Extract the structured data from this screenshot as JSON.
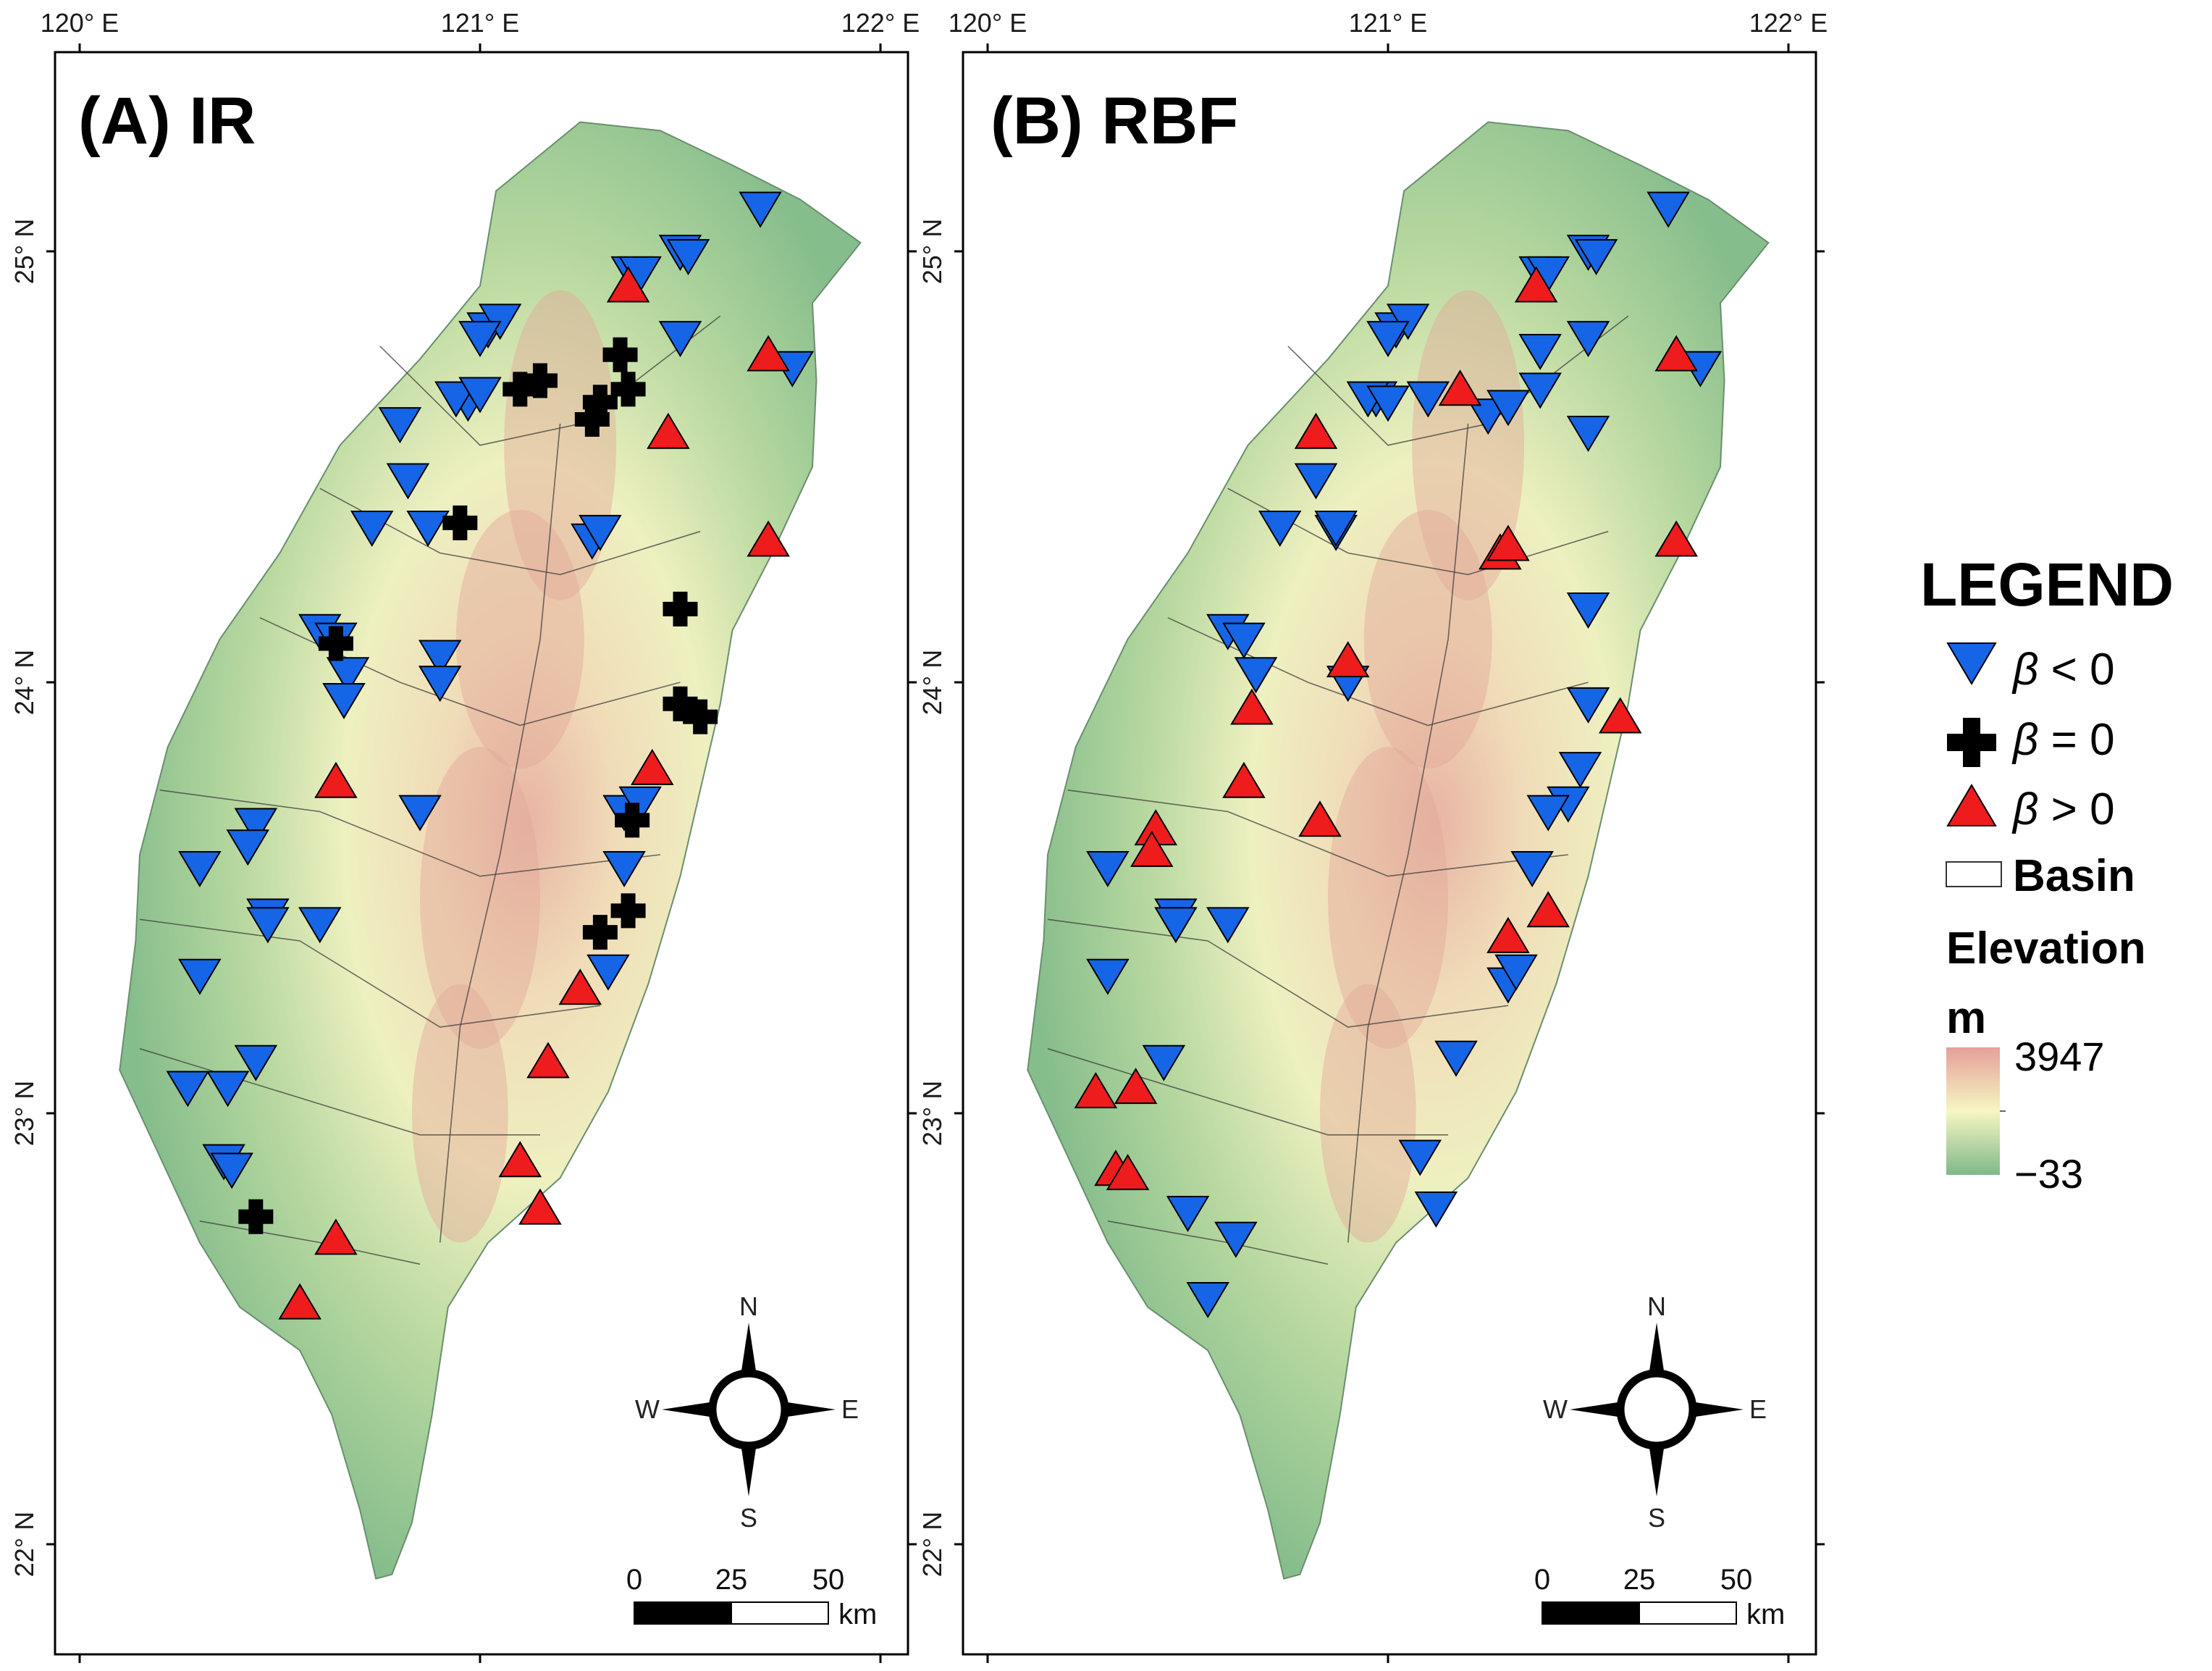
{
  "panels": [
    {
      "id": "A",
      "title": "(A) IR"
    },
    {
      "id": "B",
      "title": "(B) RBF"
    }
  ],
  "axes": {
    "x_ticks": [
      "120° E",
      "121° E",
      "122° E"
    ],
    "y_ticks": [
      "25° N",
      "24° N",
      "23° N",
      "22° N"
    ]
  },
  "compass": {
    "n": "N",
    "s": "S",
    "e": "E",
    "w": "W"
  },
  "scale_bar": {
    "labels": [
      "0",
      "25",
      "50"
    ],
    "unit": "km"
  },
  "legend": {
    "title": "LEGEND",
    "beta_symbol": "β",
    "items": [
      {
        "symbol": "triangle-down",
        "color": "#1565e6",
        "text": " < 0"
      },
      {
        "symbol": "cross",
        "color": "#000000",
        "text": " = 0"
      },
      {
        "symbol": "triangle-up",
        "color": "#ee1c1c",
        "text": " > 0"
      }
    ],
    "basin_label": "Basin",
    "elevation_label": "Elevation",
    "unit": "m",
    "elev_max": "3947",
    "elev_min": "−33"
  },
  "colors": {
    "neg": "#1565e6",
    "zero": "#000000",
    "pos": "#ee1c1c",
    "low_elev": "#7fb98a",
    "mid_elev": "#f6f6c2",
    "high_elev": "#e6a09a"
  },
  "chart_data": {
    "type": "scatter",
    "x_axis": {
      "label": "",
      "range": [
        119.95,
        122.05
      ],
      "ticks": [
        120,
        121,
        122
      ]
    },
    "y_axis": {
      "label": "",
      "range": [
        21.7,
        25.35
      ],
      "ticks": [
        22,
        23,
        24,
        25
      ]
    },
    "panels": [
      {
        "title": "(A) IR",
        "series": [
          {
            "name": "β < 0",
            "symbol": "triangle-down",
            "points": [
              [
                121.7,
                25.1
              ],
              [
                121.5,
                25.0
              ],
              [
                121.52,
                24.99
              ],
              [
                121.38,
                24.95
              ],
              [
                121.4,
                24.95
              ],
              [
                121.5,
                24.8
              ],
              [
                121.78,
                24.73
              ],
              [
                121.02,
                24.82
              ],
              [
                121.05,
                24.84
              ],
              [
                121.0,
                24.8
              ],
              [
                120.97,
                24.65
              ],
              [
                120.94,
                24.66
              ],
              [
                121.0,
                24.67
              ],
              [
                120.8,
                24.6
              ],
              [
                120.82,
                24.47
              ],
              [
                120.73,
                24.36
              ],
              [
                121.28,
                24.33
              ],
              [
                121.3,
                24.35
              ],
              [
                120.87,
                24.36
              ],
              [
                120.6,
                24.12
              ],
              [
                120.64,
                24.1
              ],
              [
                120.67,
                24.02
              ],
              [
                120.66,
                23.96
              ],
              [
                120.9,
                24.06
              ],
              [
                120.9,
                24.0
              ],
              [
                120.85,
                23.7
              ],
              [
                121.36,
                23.7
              ],
              [
                121.4,
                23.72
              ],
              [
                121.36,
                23.57
              ],
              [
                120.44,
                23.67
              ],
              [
                120.42,
                23.62
              ],
              [
                120.3,
                23.57
              ],
              [
                120.47,
                23.46
              ],
              [
                120.47,
                23.44
              ],
              [
                120.6,
                23.44
              ],
              [
                120.3,
                23.32
              ],
              [
                121.32,
                23.33
              ],
              [
                120.27,
                23.06
              ],
              [
                120.37,
                23.06
              ],
              [
                120.44,
                23.12
              ],
              [
                120.36,
                22.89
              ],
              [
                120.38,
                22.87
              ]
            ]
          },
          {
            "name": "β = 0",
            "symbol": "cross",
            "points": [
              [
                121.35,
                24.76
              ],
              [
                121.15,
                24.7
              ],
              [
                121.1,
                24.68
              ],
              [
                121.3,
                24.65
              ],
              [
                121.28,
                24.61
              ],
              [
                121.37,
                24.68
              ],
              [
                120.95,
                24.37
              ],
              [
                121.5,
                24.17
              ],
              [
                120.64,
                24.09
              ],
              [
                121.5,
                23.95
              ],
              [
                121.55,
                23.92
              ],
              [
                121.38,
                23.68
              ],
              [
                121.37,
                23.47
              ],
              [
                121.3,
                23.42
              ],
              [
                120.44,
                22.76
              ]
            ]
          },
          {
            "name": "β > 0",
            "symbol": "triangle-up",
            "points": [
              [
                121.37,
                24.92
              ],
              [
                121.72,
                24.76
              ],
              [
                121.47,
                24.58
              ],
              [
                121.72,
                24.33
              ],
              [
                121.43,
                23.8
              ],
              [
                120.64,
                23.77
              ],
              [
                121.25,
                23.29
              ],
              [
                121.17,
                23.12
              ],
              [
                121.1,
                22.89
              ],
              [
                121.15,
                22.78
              ],
              [
                120.64,
                22.71
              ],
              [
                120.55,
                22.56
              ]
            ]
          }
        ]
      },
      {
        "title": "(B) RBF",
        "series": [
          {
            "name": "β < 0",
            "symbol": "triangle-down",
            "points": [
              [
                121.7,
                25.1
              ],
              [
                121.5,
                25.0
              ],
              [
                121.52,
                24.99
              ],
              [
                121.38,
                24.95
              ],
              [
                121.4,
                24.95
              ],
              [
                121.5,
                24.8
              ],
              [
                121.38,
                24.77
              ],
              [
                121.78,
                24.73
              ],
              [
                121.02,
                24.82
              ],
              [
                121.05,
                24.84
              ],
              [
                121.0,
                24.8
              ],
              [
                120.97,
                24.66
              ],
              [
                120.95,
                24.66
              ],
              [
                121.0,
                24.65
              ],
              [
                121.1,
                24.66
              ],
              [
                121.25,
                24.62
              ],
              [
                121.3,
                24.64
              ],
              [
                121.38,
                24.68
              ],
              [
                121.5,
                24.58
              ],
              [
                120.82,
                24.47
              ],
              [
                120.73,
                24.36
              ],
              [
                120.87,
                24.35
              ],
              [
                120.87,
                24.36
              ],
              [
                121.5,
                24.17
              ],
              [
                120.6,
                24.12
              ],
              [
                120.64,
                24.1
              ],
              [
                120.67,
                24.02
              ],
              [
                120.9,
                24.0
              ],
              [
                121.5,
                23.95
              ],
              [
                121.48,
                23.8
              ],
              [
                121.45,
                23.72
              ],
              [
                121.4,
                23.7
              ],
              [
                121.36,
                23.57
              ],
              [
                120.3,
                23.57
              ],
              [
                120.47,
                23.46
              ],
              [
                120.47,
                23.44
              ],
              [
                120.6,
                23.44
              ],
              [
                120.3,
                23.32
              ],
              [
                121.3,
                23.3
              ],
              [
                121.32,
                23.33
              ],
              [
                121.17,
                23.13
              ],
              [
                120.44,
                23.12
              ],
              [
                121.08,
                22.9
              ],
              [
                121.12,
                22.78
              ],
              [
                120.5,
                22.77
              ],
              [
                120.62,
                22.71
              ],
              [
                120.55,
                22.57
              ]
            ]
          },
          {
            "name": "β > 0",
            "symbol": "triangle-up",
            "points": [
              [
                121.37,
                24.92
              ],
              [
                121.72,
                24.76
              ],
              [
                121.18,
                24.68
              ],
              [
                120.82,
                24.58
              ],
              [
                121.28,
                24.3
              ],
              [
                121.3,
                24.32
              ],
              [
                121.72,
                24.33
              ],
              [
                120.9,
                24.05
              ],
              [
                120.66,
                23.94
              ],
              [
                121.58,
                23.92
              ],
              [
                120.64,
                23.77
              ],
              [
                120.83,
                23.68
              ],
              [
                120.42,
                23.66
              ],
              [
                120.41,
                23.61
              ],
              [
                121.4,
                23.47
              ],
              [
                121.3,
                23.41
              ],
              [
                120.27,
                23.05
              ],
              [
                120.37,
                23.06
              ],
              [
                120.32,
                22.87
              ],
              [
                120.35,
                22.86
              ]
            ]
          }
        ]
      }
    ],
    "legend": {
      "title": "LEGEND",
      "entries": [
        "β < 0",
        "β = 0",
        "β > 0",
        "Basin"
      ],
      "placement": "right",
      "color_scale": {
        "label": "Elevation",
        "unit": "m",
        "min": -33,
        "max": 3947
      }
    }
  }
}
